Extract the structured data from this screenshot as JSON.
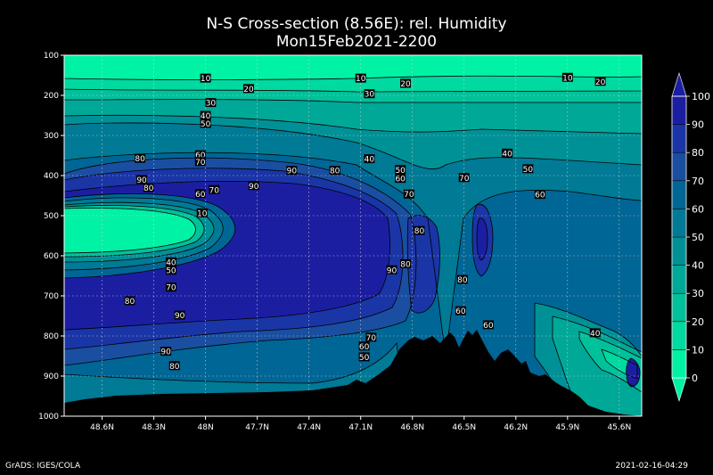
{
  "title_line1": "N-S Cross-section (8.56E): rel. Humidity",
  "title_line2": "Mon15Feb2021-2200",
  "footer_left": "GrADS: IGES/COLA",
  "footer_right": "2021-02-16-04:29",
  "colors": {
    "background": "#000000",
    "terrain": "#000000",
    "grid": "#d0d0d0",
    "band_fills": [
      "#00f2a4",
      "#00d9a0",
      "#00c19a",
      "#00a898",
      "#009196",
      "#007a95",
      "#006695",
      "#1a4ea0",
      "#1a35a6",
      "#1c1ea2"
    ]
  },
  "chart_data": {
    "type": "heatmap",
    "variable": "rel. Humidity",
    "section": "N-S Cross-section (8.56E)",
    "x_tick_labels": [
      "48.6N",
      "48.3N",
      "48N",
      "47.7N",
      "47.4N",
      "47.1N",
      "46.8N",
      "46.5N",
      "46.2N",
      "45.9N",
      "45.6N"
    ],
    "x_values": [
      48.6,
      48.3,
      48.0,
      47.7,
      47.4,
      47.1,
      46.8,
      46.5,
      46.2,
      45.9,
      45.6
    ],
    "x_range": [
      48.82,
      45.47
    ],
    "y_tick_labels": [
      "100",
      "200",
      "300",
      "400",
      "500",
      "600",
      "700",
      "800",
      "900",
      "1000"
    ],
    "y_values": [
      100,
      200,
      300,
      400,
      500,
      600,
      700,
      800,
      900,
      1000
    ],
    "y_range": [
      100,
      1000
    ],
    "grid": true,
    "colorbar": {
      "placement": "right",
      "levels": [
        0,
        10,
        20,
        30,
        40,
        50,
        60,
        70,
        80,
        90,
        100
      ],
      "labels": [
        "0",
        "10",
        "20",
        "30",
        "40",
        "50",
        "60",
        "70",
        "80",
        "90",
        "100"
      ]
    },
    "contour_labels": [
      {
        "text": "10",
        "lat": 48.0,
        "p": 157
      },
      {
        "text": "10",
        "lat": 47.1,
        "p": 157
      },
      {
        "text": "10",
        "lat": 45.9,
        "p": 155
      },
      {
        "text": "20",
        "lat": 47.75,
        "p": 183
      },
      {
        "text": "20",
        "lat": 46.84,
        "p": 170
      },
      {
        "text": "20",
        "lat": 45.71,
        "p": 165
      },
      {
        "text": "30",
        "lat": 47.97,
        "p": 218
      },
      {
        "text": "30",
        "lat": 47.05,
        "p": 196
      },
      {
        "text": "40",
        "lat": 48.0,
        "p": 250
      },
      {
        "text": "50",
        "lat": 48.0,
        "p": 270
      },
      {
        "text": "60",
        "lat": 48.03,
        "p": 348
      },
      {
        "text": "70",
        "lat": 48.03,
        "p": 365
      },
      {
        "text": "80",
        "lat": 48.38,
        "p": 357
      },
      {
        "text": "90",
        "lat": 48.37,
        "p": 410
      },
      {
        "text": "80",
        "lat": 48.33,
        "p": 430
      },
      {
        "text": "60",
        "lat": 48.03,
        "p": 445
      },
      {
        "text": "70",
        "lat": 47.95,
        "p": 435
      },
      {
        "text": "90",
        "lat": 47.72,
        "p": 425
      },
      {
        "text": "90",
        "lat": 47.5,
        "p": 387
      },
      {
        "text": "80",
        "lat": 47.25,
        "p": 387
      },
      {
        "text": "40",
        "lat": 47.05,
        "p": 358
      },
      {
        "text": "50",
        "lat": 46.87,
        "p": 385
      },
      {
        "text": "60",
        "lat": 46.87,
        "p": 407
      },
      {
        "text": "70",
        "lat": 46.82,
        "p": 446
      },
      {
        "text": "80",
        "lat": 46.76,
        "p": 537
      },
      {
        "text": "90",
        "lat": 46.92,
        "p": 635
      },
      {
        "text": "80",
        "lat": 46.84,
        "p": 620
      },
      {
        "text": "70",
        "lat": 46.5,
        "p": 405
      },
      {
        "text": "50",
        "lat": 46.13,
        "p": 383
      },
      {
        "text": "40",
        "lat": 46.25,
        "p": 344
      },
      {
        "text": "60",
        "lat": 46.06,
        "p": 447
      },
      {
        "text": "80",
        "lat": 46.51,
        "p": 659
      },
      {
        "text": "60",
        "lat": 46.52,
        "p": 737
      },
      {
        "text": "60",
        "lat": 46.36,
        "p": 772
      },
      {
        "text": "40",
        "lat": 48.2,
        "p": 615
      },
      {
        "text": "50",
        "lat": 48.2,
        "p": 636
      },
      {
        "text": "70",
        "lat": 48.2,
        "p": 678
      },
      {
        "text": "80",
        "lat": 48.44,
        "p": 712
      },
      {
        "text": "90",
        "lat": 48.15,
        "p": 748
      },
      {
        "text": "90",
        "lat": 48.23,
        "p": 838
      },
      {
        "text": "80",
        "lat": 48.18,
        "p": 874
      },
      {
        "text": "70",
        "lat": 47.04,
        "p": 803
      },
      {
        "text": "60",
        "lat": 47.08,
        "p": 825
      },
      {
        "text": "50",
        "lat": 47.08,
        "p": 852
      },
      {
        "text": "40",
        "lat": 45.74,
        "p": 792
      },
      {
        "text": "10",
        "lat": 48.02,
        "p": 493
      }
    ]
  }
}
